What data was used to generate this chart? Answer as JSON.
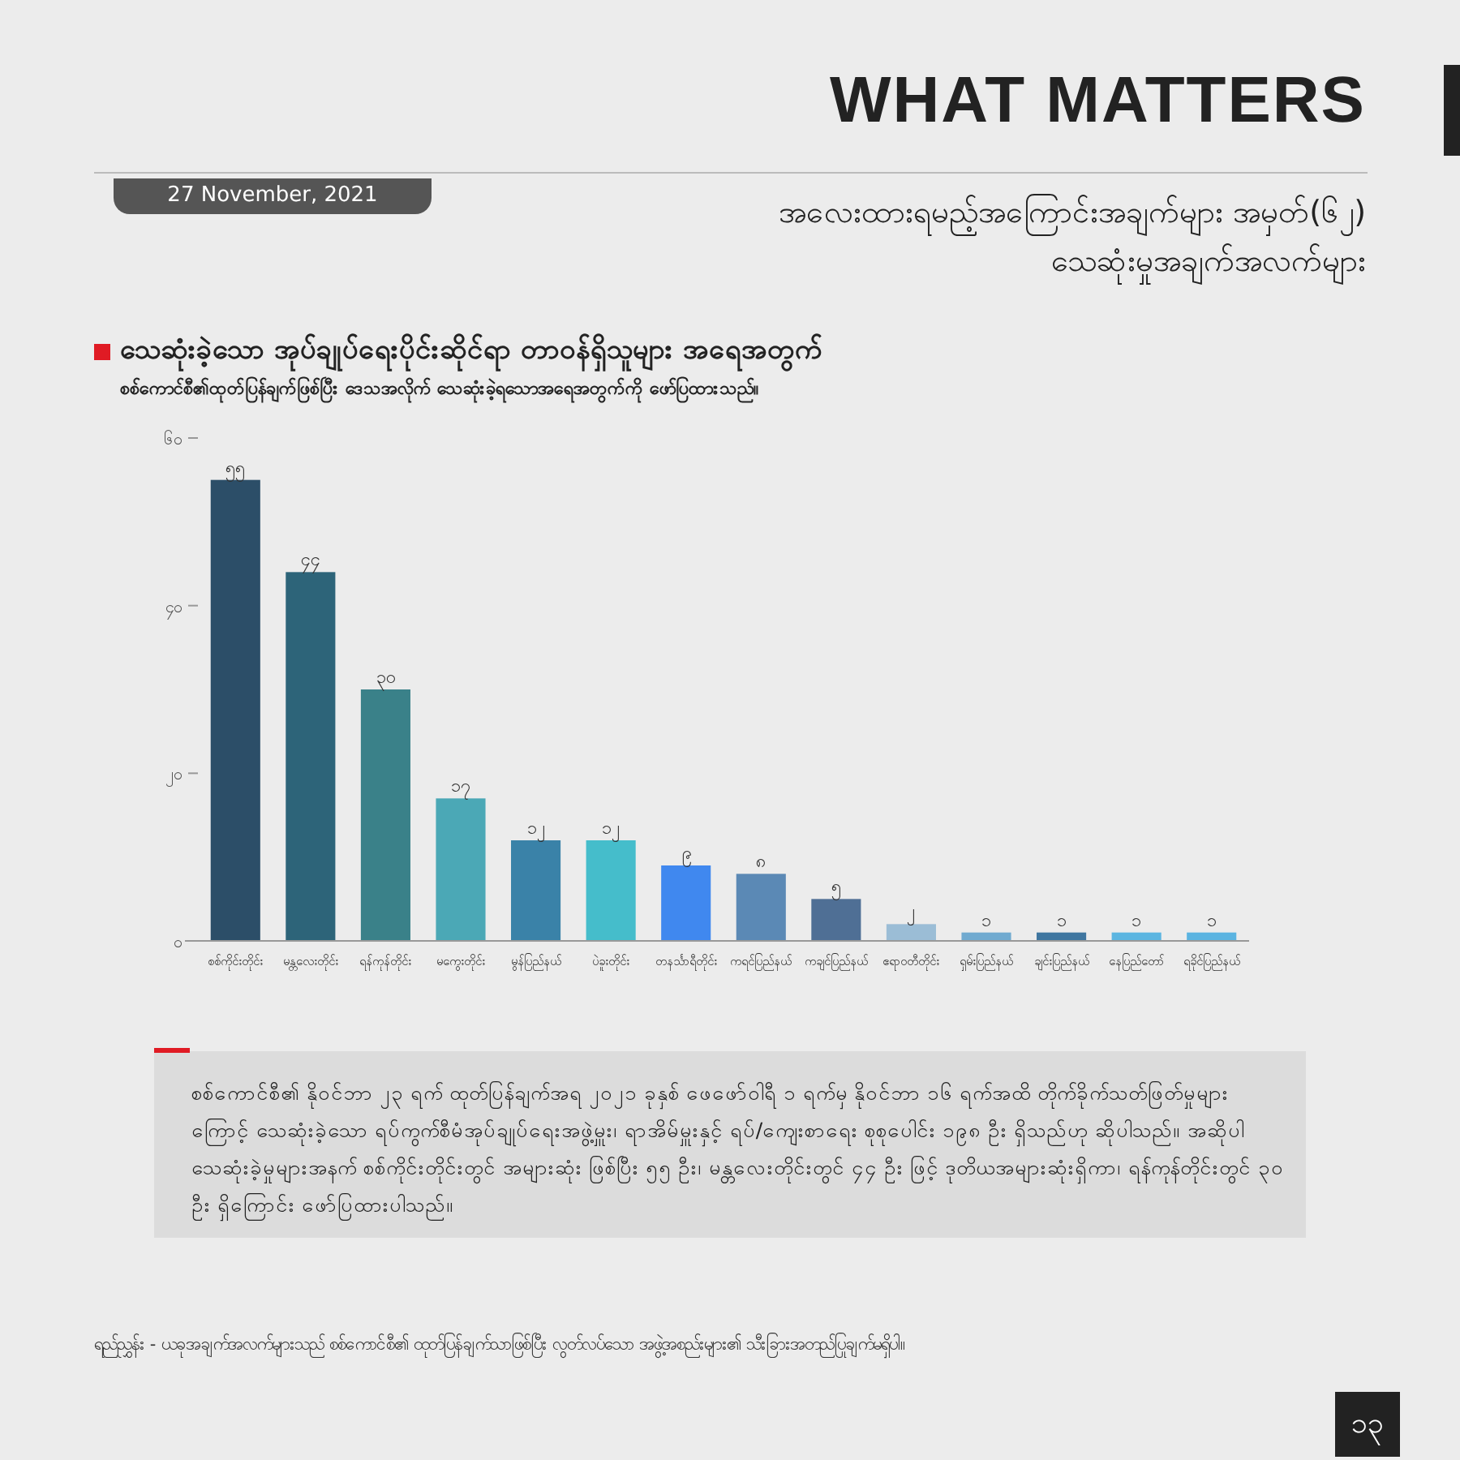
{
  "chart_data": {
    "type": "bar",
    "title": "သေဆုံးခဲ့သော အုပ်ချုပ်ရေးပိုင်းဆိုင်ရာ တာဝန်ရှိသူများ အရေအတွက်",
    "subtitle": "စစ်ကောင်စီ၏ထုတ်ပြန်ချက်ဖြစ်ပြီး ဒေသအလိုက် သေဆုံးခဲ့ရသောအရေအတွက်ကို ဖော်ပြထားသည်။",
    "categories": [
      "စစ်ကိုင်းတိုင်း",
      "မန္တလေးတိုင်း",
      "ရန်ကုန်တိုင်း",
      "မကွေးတိုင်း",
      "မွန်ပြည်နယ်",
      "ပဲခူးတိုင်း",
      "တနင်္သာရီတိုင်း",
      "ကရင်ပြည်နယ်",
      "ကချင်ပြည်နယ်",
      "ဧရာဝတီတိုင်း",
      "ရှမ်းပြည်နယ်",
      "ချင်းပြည်နယ်",
      "နေပြည်တော်",
      "ရခိုင်ပြည်နယ်"
    ],
    "values": [
      55,
      44,
      30,
      17,
      12,
      12,
      9,
      8,
      5,
      2,
      1,
      1,
      1,
      1
    ],
    "value_labels": [
      "၅၅",
      "၄၄",
      "၃၀",
      "၁၇",
      "၁၂",
      "၁၂",
      "၉",
      "၈",
      "၅",
      "၂",
      "၁",
      "၁",
      "၁",
      "၁"
    ],
    "colors": [
      "#2c4e68",
      "#2d6479",
      "#3a8189",
      "#4ba8b6",
      "#3a82a8",
      "#45bdcb",
      "#4088ef",
      "#5b89b5",
      "#4f6f95",
      "#9bbdd6",
      "#70aad0",
      "#3f76a0",
      "#5bb5e1",
      "#5bb4e1"
    ],
    "ylim": [
      0,
      60
    ],
    "yticks": [
      {
        "value": 0,
        "label": "၀"
      },
      {
        "value": 20,
        "label": "၂၀"
      },
      {
        "value": 40,
        "label": "၄၀"
      },
      {
        "value": 60,
        "label": "၆၀"
      }
    ],
    "annotations": [
      "WHAT MATTERS",
      "27 November, 2021",
      "အလေးထားရမည့်အကြောင်းအချက်များ အမှတ်(၆၂)",
      "သေဆုံးမှုအချက်အလက်များ",
      "စစ်ကောင်စီ၏ နိုဝင်ဘာ ၂၃ ရက် ထုတ်ပြန်ချက်အရ ၂၀၂၁ ခုနှစ် ဖေဖော်ဝါရီ ၁ ရက်မှ နိုဝင်ဘာ ၁၆ ရက်အထိ တိုက်ခိုက်သတ်ဖြတ်မှုများကြောင့် သေဆုံးခဲ့သော ရပ်ကွက်စီမံအုပ်ချုပ်ရေးအဖွဲ့မှူး၊ ရာအိမ်မှူးနှင့် ရပ်/ကျေးစာရေး စုစုပေါင်း ၁၉၈ ဦး ရှိသည်ဟု ဆိုပါသည်။ အဆိုပါ သေဆုံးခဲ့မှုများအနက် စစ်ကိုင်းတိုင်းတွင် အများဆုံး ဖြစ်ပြီး ၅၅ ဦး၊ မန္တလေးတိုင်းတွင် ၄၄ ဦး ဖြင့် ဒုတိယအများဆုံးရှိကာ၊ ရန်ကုန်တိုင်းတွင် ၃၀ ဦး ရှိကြောင်း ဖော်ပြထားပါသည်။",
      "ရည်ညွှန်း - ယခုအချက်အလက်များသည် စစ်ကောင်စီ၏ ထုတ်ပြန်ချက်သာဖြစ်ပြီး လွတ်လပ်သော အဖွဲ့အစည်းများ၏ သီးခြားအတည်ပြုချက်မရှိပါ။",
      "၁၃"
    ]
  }
}
